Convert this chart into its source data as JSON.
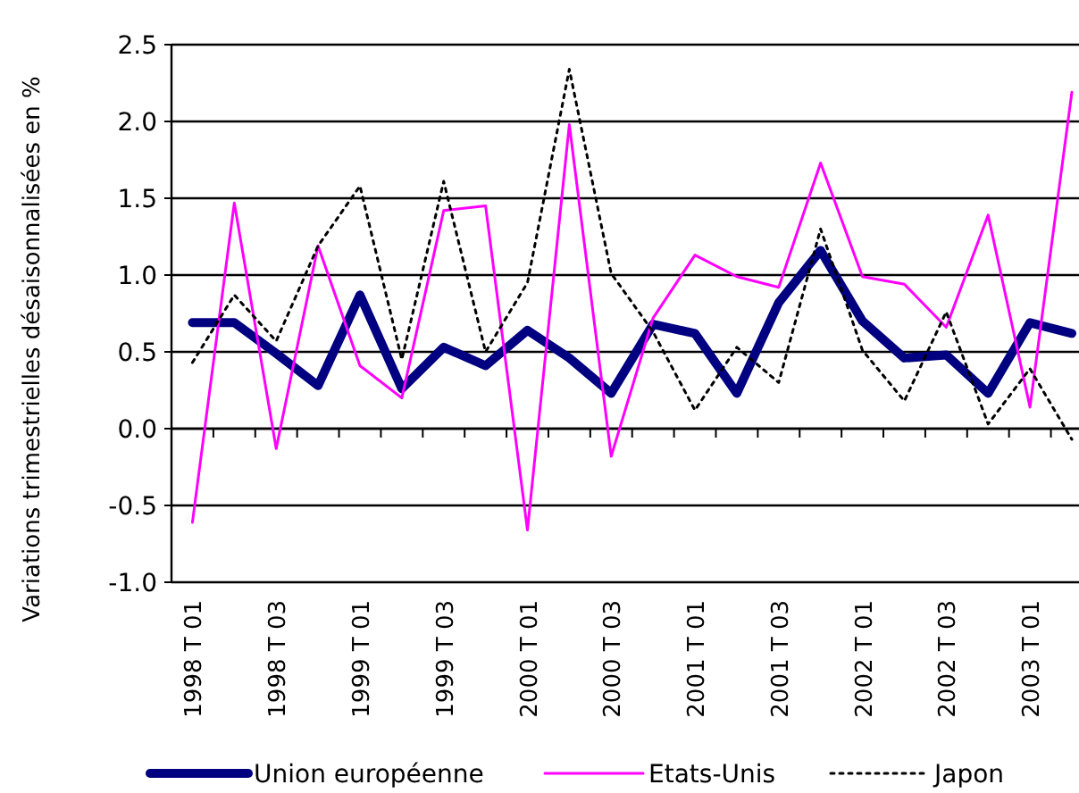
{
  "chart_data": {
    "type": "line",
    "ylabel": "Variations trimestrielles désaisonnalisées en %",
    "categories": [
      "1998 T 01",
      null,
      "1998 T 03",
      null,
      "1999 T 01",
      null,
      "1999 T 03",
      null,
      "2000 T 01",
      null,
      "2000 T 03",
      null,
      "2001 T 01",
      null,
      "2001 T 03",
      null,
      "2002 T 01",
      null,
      "2002 T 03",
      null,
      "2003 T 01",
      null
    ],
    "series": [
      {
        "name": "Union européenne",
        "color": "#000080",
        "line_style": "solid",
        "values": [
          0.69,
          0.69,
          0.49,
          0.28,
          0.87,
          0.26,
          0.53,
          0.41,
          0.64,
          0.46,
          0.23,
          0.68,
          0.62,
          0.23,
          0.82,
          1.16,
          0.7,
          0.46,
          0.48,
          0.23,
          0.69,
          0.62
        ]
      },
      {
        "name": "Etats-Unis",
        "color": "#ff00ff",
        "line_style": "solid",
        "values": [
          -0.61,
          1.47,
          -0.13,
          1.19,
          0.41,
          0.2,
          1.42,
          1.45,
          -0.66,
          1.98,
          -0.18,
          0.72,
          1.13,
          0.99,
          0.92,
          1.73,
          0.99,
          0.94,
          0.66,
          1.39,
          0.14,
          2.19
        ]
      },
      {
        "name": "Japon",
        "color": "#000000",
        "line_style": "dotted",
        "values": [
          0.43,
          0.87,
          0.57,
          1.19,
          1.58,
          0.45,
          1.61,
          0.5,
          0.95,
          2.34,
          1.01,
          0.63,
          0.12,
          0.53,
          0.3,
          1.3,
          0.51,
          0.18,
          0.76,
          0.03,
          0.39,
          -0.07
        ]
      }
    ],
    "ylim": [
      -1,
      2.5
    ],
    "yticks": [
      {
        "value": -1,
        "label": "-1.0"
      },
      {
        "value": -0.5,
        "label": "-0.5"
      },
      {
        "value": 0,
        "label": "0.0"
      },
      {
        "value": 0.5,
        "label": "0.5"
      },
      {
        "value": 1,
        "label": "1.0"
      },
      {
        "value": 1.5,
        "label": "1.5"
      },
      {
        "value": 2,
        "label": "2.0"
      },
      {
        "value": 2.5,
        "label": "2.5"
      }
    ],
    "grid": "y",
    "legend": "bottom",
    "marker": "none"
  }
}
